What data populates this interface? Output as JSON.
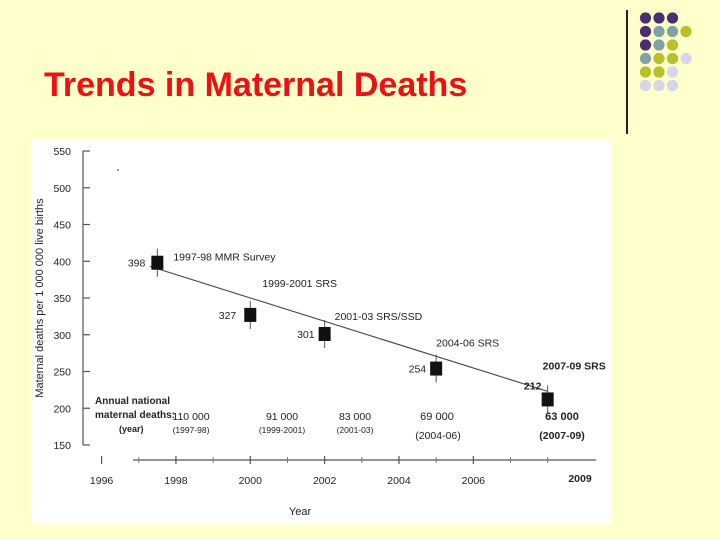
{
  "slide": {
    "title": "Trends in Maternal Deaths"
  },
  "decor": {
    "dot_colors": {
      "purple": "#4b2e6e",
      "teal": "#7fa3a3",
      "olive": "#b8c02a",
      "lavender": "#d6d6e8"
    },
    "dot_grid": [
      [
        "",
        "purple",
        "purple",
        "purple",
        ""
      ],
      [
        "",
        "purple",
        "teal",
        "teal",
        "olive"
      ],
      [
        "",
        "purple",
        "teal",
        "olive",
        ""
      ],
      [
        "",
        "teal",
        "olive",
        "olive",
        "lavender"
      ],
      [
        "",
        "olive",
        "olive",
        "lavender",
        ""
      ],
      [
        "",
        "lavender",
        "lavender",
        "lavender",
        ""
      ]
    ]
  },
  "chart_data": {
    "type": "scatter",
    "title": "",
    "xlabel": "Year",
    "ylabel": "Maternal deaths per 1 000 000 live births",
    "xlim": [
      1995.5,
      2009.3
    ],
    "ylim": [
      150,
      550
    ],
    "x_ticks": [
      1996,
      1998,
      2000,
      2002,
      2004,
      2006
    ],
    "x_extra_tick": "2009",
    "y_ticks": [
      150,
      200,
      250,
      300,
      350,
      400,
      450,
      500,
      550
    ],
    "points": [
      {
        "x": 1997.5,
        "y": 398,
        "value_label": "398",
        "source": "1997-98 MMR Survey",
        "annual": "110 000",
        "period": "(1997-98)"
      },
      {
        "x": 2000.0,
        "y": 327,
        "value_label": "327",
        "source": "1999-2001 SRS",
        "annual": "91 000",
        "period": "(1999-2001)"
      },
      {
        "x": 2002.0,
        "y": 301,
        "value_label": "301",
        "source": "2001-03 SRS/SSD",
        "annual": "83 000",
        "period": "(2001-03)"
      },
      {
        "x": 2005.0,
        "y": 254,
        "value_label": "254",
        "source": "2004-06 SRS",
        "annual": "69 000",
        "period": "(2004-06)"
      },
      {
        "x": 2008.0,
        "y": 212,
        "value_label": "212",
        "source": "2007-09 SRS",
        "annual": "63 000",
        "period": "(2007-09)"
      }
    ],
    "trend_line": [
      {
        "x": 1997.3,
        "y": 393
      },
      {
        "x": 2008.0,
        "y": 223
      }
    ],
    "annual_label": {
      "line1": "Annual national",
      "line2": "maternal deaths:",
      "line3": "(year)"
    },
    "grid": false,
    "legend": "none"
  }
}
